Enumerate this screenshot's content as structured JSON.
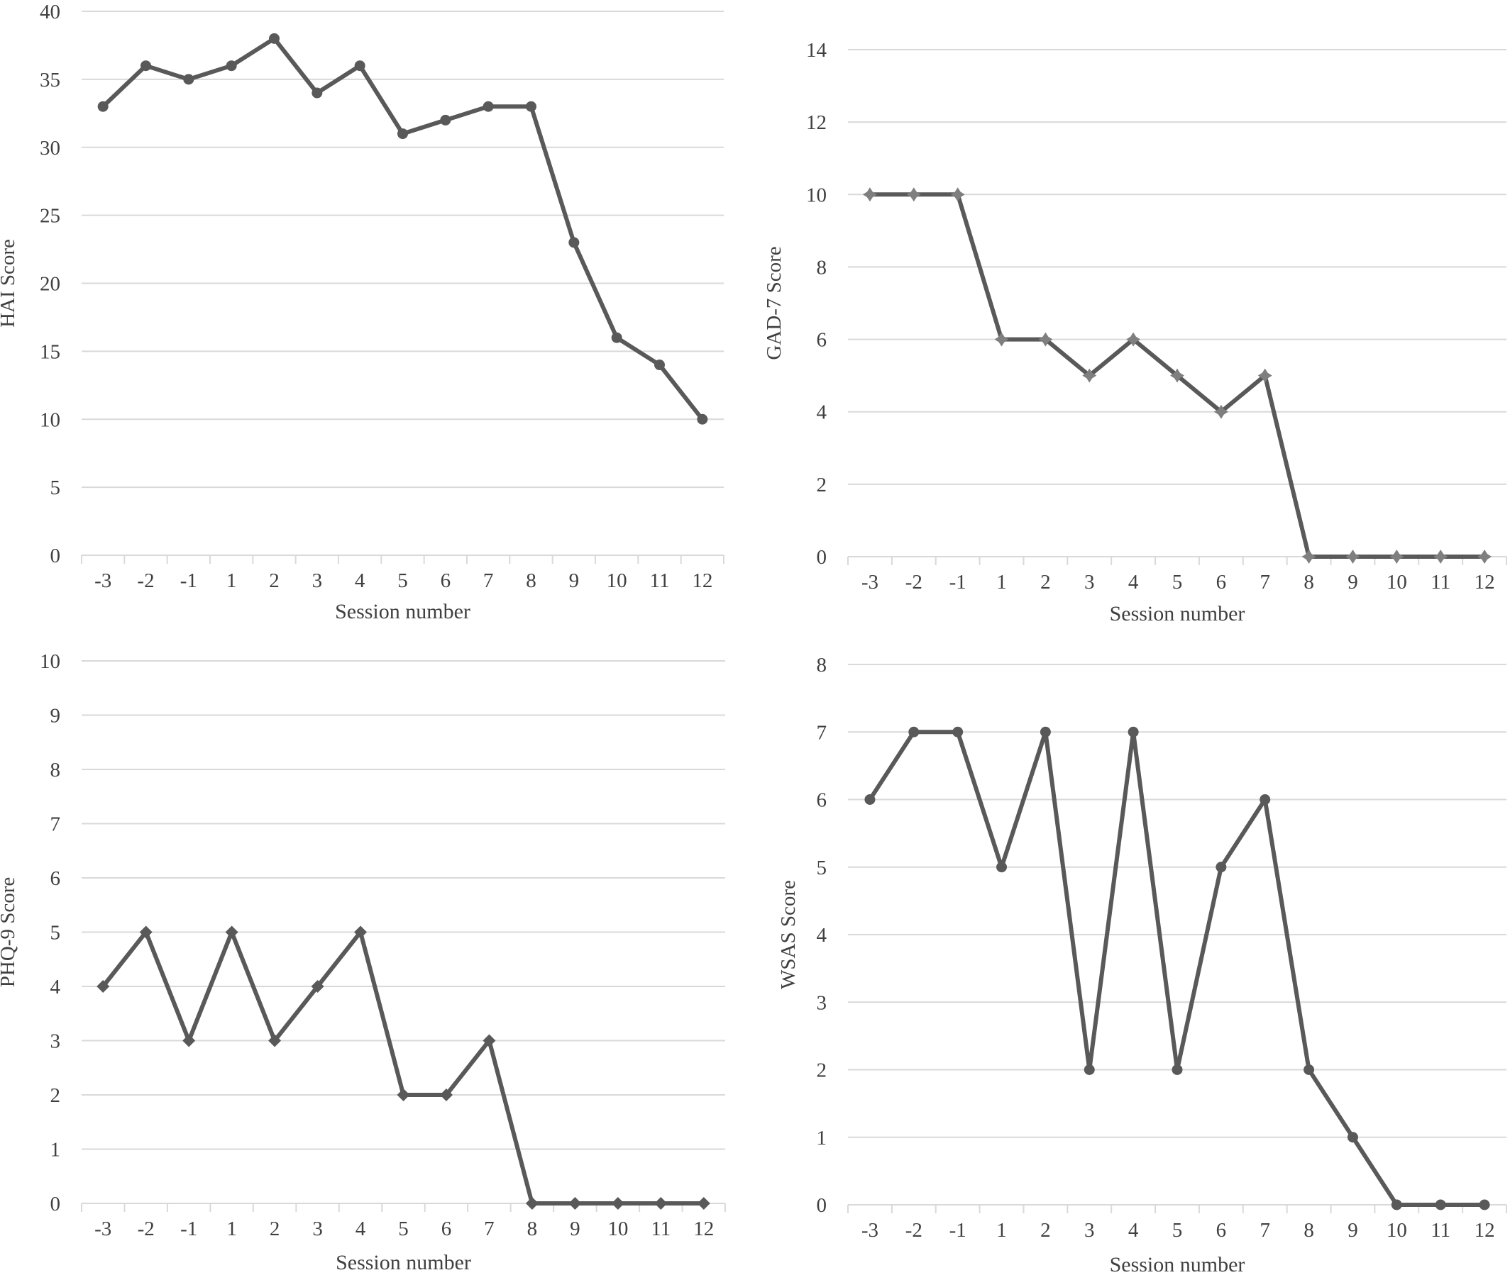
{
  "chart_data": [
    {
      "type": "line",
      "xlabel": "Session number",
      "ylabel": "HAI Score",
      "x": [
        "-3",
        "-2",
        "-1",
        "1",
        "2",
        "3",
        "4",
        "5",
        "6",
        "7",
        "8",
        "9",
        "10",
        "11",
        "12"
      ],
      "ylim": [
        0,
        40
      ],
      "yticks": [
        0,
        5,
        10,
        15,
        20,
        25,
        30,
        35,
        40
      ],
      "grid": true,
      "series": [
        {
          "values": [
            33,
            36,
            35,
            36,
            38,
            34,
            36,
            31,
            32,
            33,
            33,
            23,
            16,
            14,
            10
          ],
          "marker": "circle",
          "color": "#595959"
        }
      ]
    },
    {
      "type": "line",
      "xlabel": "Session number",
      "ylabel": "GAD-7 Score",
      "x": [
        "-3",
        "-2",
        "-1",
        "1",
        "2",
        "3",
        "4",
        "5",
        "6",
        "7",
        "8",
        "9",
        "10",
        "11",
        "12"
      ],
      "ylim": [
        0,
        14
      ],
      "yticks": [
        0,
        2,
        4,
        6,
        8,
        10,
        12,
        14
      ],
      "grid": true,
      "series": [
        {
          "values": [
            10,
            10,
            10,
            6,
            6,
            5,
            6,
            5,
            4,
            5,
            0,
            0,
            0,
            0,
            0
          ],
          "marker": "star",
          "color": "#595959"
        }
      ]
    },
    {
      "type": "line",
      "xlabel": "Session number",
      "ylabel": "PHQ-9 Score",
      "x": [
        "-3",
        "-2",
        "-1",
        "1",
        "2",
        "3",
        "4",
        "5",
        "6",
        "7",
        "8",
        "9",
        "10",
        "11",
        "12"
      ],
      "ylim": [
        0,
        10
      ],
      "yticks": [
        0,
        1,
        2,
        3,
        4,
        5,
        6,
        7,
        8,
        9,
        10
      ],
      "grid": true,
      "series": [
        {
          "values": [
            4,
            5,
            3,
            5,
            3,
            4,
            5,
            2,
            2,
            3,
            0,
            0,
            0,
            0,
            0
          ],
          "marker": "diamond",
          "color": "#595959"
        }
      ]
    },
    {
      "type": "line",
      "xlabel": "Session number",
      "ylabel": "WSAS Score",
      "x": [
        "-3",
        "-2",
        "-1",
        "1",
        "2",
        "3",
        "4",
        "5",
        "6",
        "7",
        "8",
        "9",
        "10",
        "11",
        "12"
      ],
      "ylim": [
        0,
        8
      ],
      "yticks": [
        0,
        1,
        2,
        3,
        4,
        5,
        6,
        7,
        8
      ],
      "grid": true,
      "series": [
        {
          "values": [
            6,
            7,
            7,
            5,
            7,
            2,
            7,
            2,
            5,
            6,
            2,
            1,
            0,
            0,
            0
          ],
          "marker": "circle",
          "color": "#595959"
        }
      ]
    }
  ]
}
